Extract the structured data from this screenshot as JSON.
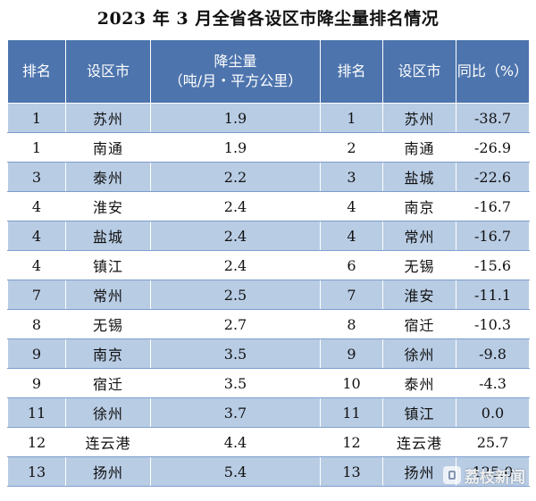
{
  "title": "2023 年 3 月全省各设区市降尘量排名情况",
  "headers": {
    "rank": "排名",
    "city": "设区市",
    "dustfall": "降尘量",
    "dustfall_unit": "（吨/月・平方公里）",
    "rank2": "排名",
    "city2": "设区市",
    "yoy": "同比（%）"
  },
  "rows": [
    {
      "rank": "1",
      "city": "苏州",
      "value": "1.9",
      "rank2": "1",
      "city2": "苏州",
      "yoy": "-38.7"
    },
    {
      "rank": "1",
      "city": "南通",
      "value": "1.9",
      "rank2": "2",
      "city2": "南通",
      "yoy": "-26.9"
    },
    {
      "rank": "3",
      "city": "泰州",
      "value": "2.2",
      "rank2": "3",
      "city2": "盐城",
      "yoy": "-22.6"
    },
    {
      "rank": "4",
      "city": "淮安",
      "value": "2.4",
      "rank2": "4",
      "city2": "南京",
      "yoy": "-16.7"
    },
    {
      "rank": "4",
      "city": "盐城",
      "value": "2.4",
      "rank2": "4",
      "city2": "常州",
      "yoy": "-16.7"
    },
    {
      "rank": "4",
      "city": "镇江",
      "value": "2.4",
      "rank2": "6",
      "city2": "无锡",
      "yoy": "-15.6"
    },
    {
      "rank": "7",
      "city": "常州",
      "value": "2.5",
      "rank2": "7",
      "city2": "淮安",
      "yoy": "-11.1"
    },
    {
      "rank": "8",
      "city": "无锡",
      "value": "2.7",
      "rank2": "8",
      "city2": "宿迁",
      "yoy": "-10.3"
    },
    {
      "rank": "9",
      "city": "南京",
      "value": "3.5",
      "rank2": "9",
      "city2": "徐州",
      "yoy": "-9.8"
    },
    {
      "rank": "9",
      "city": "宿迁",
      "value": "3.5",
      "rank2": "10",
      "city2": "泰州",
      "yoy": "-4.3"
    },
    {
      "rank": "11",
      "city": "徐州",
      "value": "3.7",
      "rank2": "11",
      "city2": "镇江",
      "yoy": "0.0"
    },
    {
      "rank": "12",
      "city": "连云港",
      "value": "4.4",
      "rank2": "12",
      "city2": "连云港",
      "yoy": "25.7"
    },
    {
      "rank": "13",
      "city": "扬州",
      "value": "5.4",
      "rank2": "13",
      "city2": "扬州",
      "yoy": "125.0"
    }
  ],
  "watermark": {
    "text": "荔枝新闻",
    "icon": "lizhi-news-logo-icon"
  },
  "colors": {
    "header_bg": "#4d74ad",
    "stripe_bg": "#b8cce4",
    "border": "#7e9dcc"
  }
}
